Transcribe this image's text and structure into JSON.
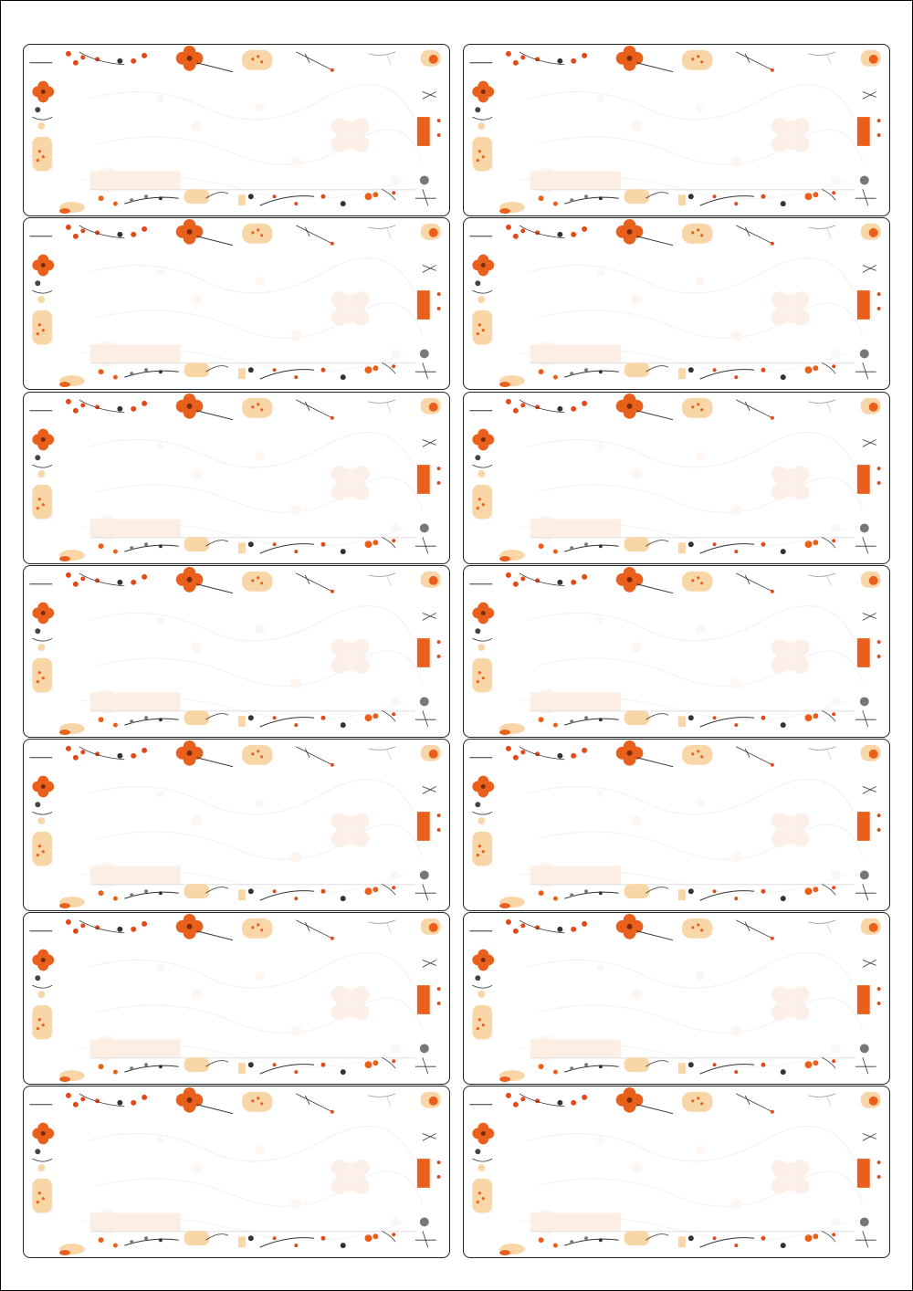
{
  "page": {
    "kind": "label-sheet",
    "columns": 2,
    "rows": 7
  },
  "theme": {
    "design": "autumn-floral-border",
    "border_color": "#222222",
    "flower_orange": "#e8601c",
    "flower_peach": "#f9d6a8",
    "flower_pale": "#fde9dc",
    "stem_dark": "#333333",
    "stem_grey": "#cfcfcf",
    "berry_red": "#e04a1a"
  },
  "labels": [
    {
      "text": ""
    },
    {
      "text": ""
    },
    {
      "text": ""
    },
    {
      "text": ""
    },
    {
      "text": ""
    },
    {
      "text": ""
    },
    {
      "text": ""
    },
    {
      "text": ""
    },
    {
      "text": ""
    },
    {
      "text": ""
    },
    {
      "text": ""
    },
    {
      "text": ""
    },
    {
      "text": ""
    },
    {
      "text": ""
    }
  ]
}
